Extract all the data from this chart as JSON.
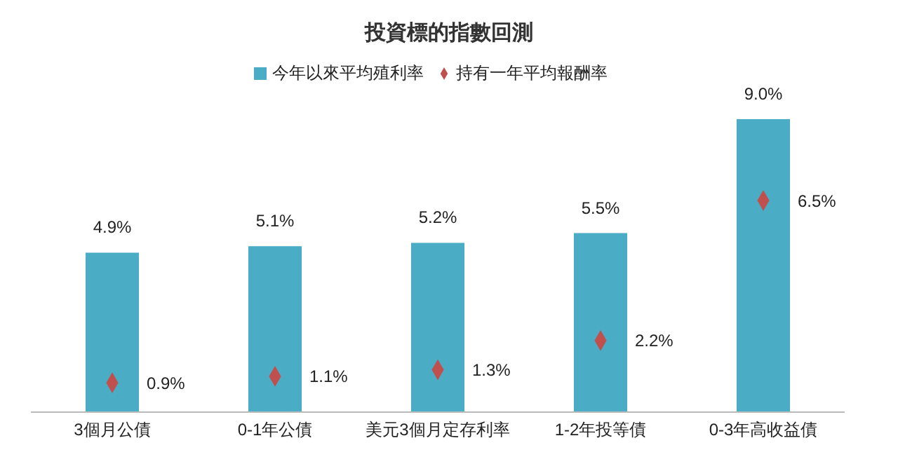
{
  "chart_data": {
    "type": "bar",
    "title": "投資標的指數回測",
    "categories": [
      "3個月公債",
      "0-1年公債",
      "美元3個月定存利率",
      "1-2年投等債",
      "0-3年高收益債"
    ],
    "series": [
      {
        "name": "今年以來平均殖利率",
        "color": "#4bacc6",
        "values": [
          4.9,
          5.1,
          5.2,
          5.5,
          9.0
        ],
        "value_labels": [
          "4.9%",
          "5.1%",
          "5.2%",
          "5.5%",
          "9.0%"
        ]
      },
      {
        "name": "持有一年平均報酬率",
        "type": "scatter",
        "color": "#c0504d",
        "values": [
          0.9,
          1.1,
          1.3,
          2.2,
          6.5
        ],
        "value_labels": [
          "0.9%",
          "1.1%",
          "1.3%",
          "2.2%",
          "6.5%"
        ]
      }
    ],
    "legend": "top",
    "marker": "diamond",
    "grid": false
  }
}
